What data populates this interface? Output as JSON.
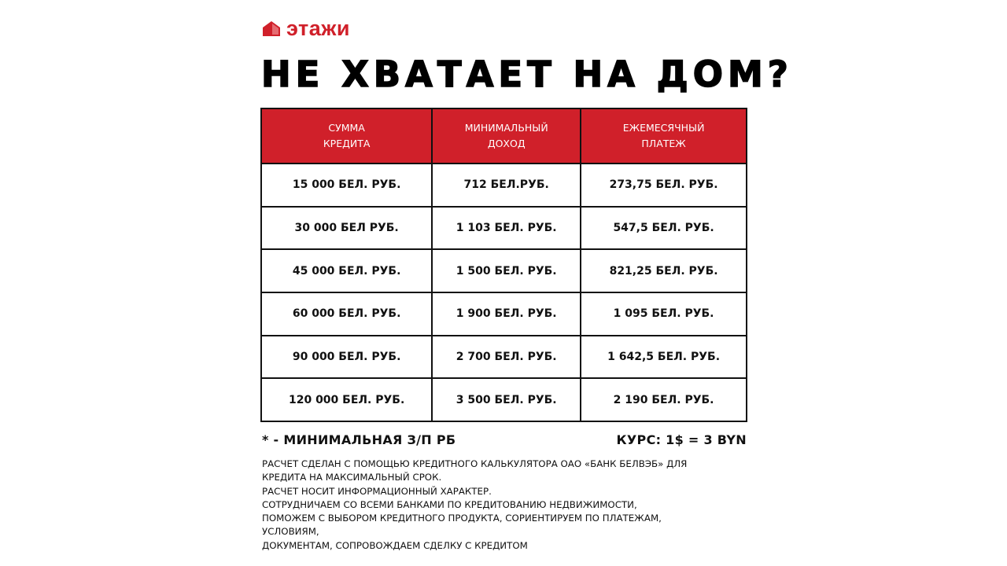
{
  "brand": {
    "name": "этажи",
    "color": "#d0202a"
  },
  "title": "НЕ ХВАТАЕТ НА ДОМ?",
  "table": {
    "headers": [
      "СУММА\nКРЕДИТА",
      "МИНИМАЛЬНЫЙ\nДОХОД",
      "ЕЖЕМЕСЯЧНЫЙ\nПЛАТЕЖ"
    ],
    "rows": [
      [
        "15 000 БЕЛ. РУБ.",
        "712 БЕЛ.РУБ.",
        "273,75 БЕЛ. РУБ."
      ],
      [
        "30 000 БЕЛ РУБ.",
        "1 103 БЕЛ. РУБ.",
        "547,5 БЕЛ. РУБ."
      ],
      [
        "45 000 БЕЛ. РУБ.",
        "1 500 БЕЛ. РУБ.",
        "821,25 БЕЛ. РУБ."
      ],
      [
        "60 000 БЕЛ. РУБ.",
        "1 900 БЕЛ. РУБ.",
        "1 095 БЕЛ. РУБ."
      ],
      [
        "90 000 БЕЛ. РУБ.",
        "2 700 БЕЛ. РУБ.",
        "1 642,5 БЕЛ. РУБ."
      ],
      [
        "120 000 БЕЛ. РУБ.",
        "3 500 БЕЛ. РУБ.",
        "2 190 БЕЛ. РУБ."
      ]
    ]
  },
  "footnote": "* - МИНИМАЛЬНАЯ З/П РБ",
  "rate": "КУРС: 1$ = 3 BYN",
  "disclaimer": "РАСЧЕТ СДЕЛАН С ПОМОЩЬЮ КРЕДИТНОГО КАЛЬКУЛЯТОРА ОАО «БАНК БЕЛВЭБ» ДЛЯ\nКРЕДИТА НА МАКСИМАЛЬНЫЙ СРОК.\nРАСЧЕТ НОСИТ ИНФОРМАЦИОННЫЙ ХАРАКТЕР.\nСОТРУДНИЧАЕМ СО ВСЕМИ БАНКАМИ ПО КРЕДИТОВАНИЮ НЕДВИЖИМОСТИ,\nПОМОЖЕМ С ВЫБОРОМ КРЕДИТНОГО ПРОДУКТА, СОРИЕНТИРУЕМ ПО ПЛАТЕЖАМ,\nУСЛОВИЯМ,\nДОКУМЕНТАМ, СОПРОВОЖДАЕМ СДЕЛКУ С КРЕДИТОМ"
}
